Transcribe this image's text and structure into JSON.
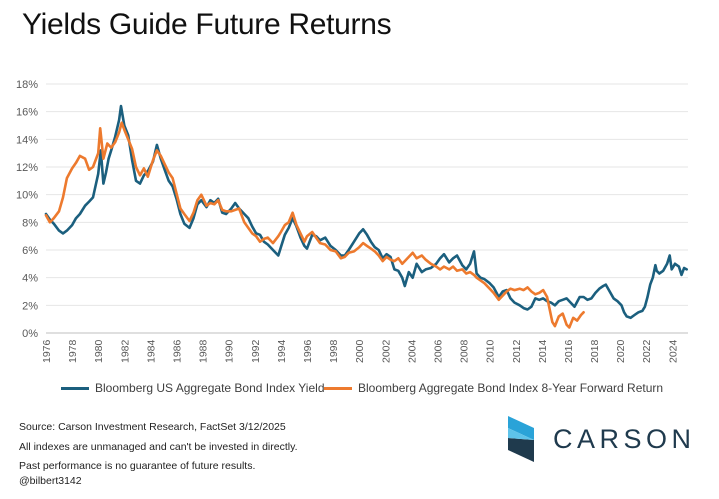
{
  "title": "Yields Guide Future Returns",
  "colors": {
    "yield": "#1b5f7e",
    "forward": "#ed7a2e",
    "axis_text": "#595959",
    "grid": "#e6e6e6",
    "logo_dark": "#1f3a4d",
    "logo_light": "#2aa3d8"
  },
  "source_notes": [
    "Source: Carson Investment Research, FactSet 3/12/2025",
    "All indexes are unmanaged and can't be invested in directly.",
    "Past performance is no guarantee of future results."
  ],
  "handle": "@bilbert3142",
  "logo": {
    "name": "CARSON",
    "icon": "carson-chevron-logo-icon"
  },
  "chart_data": {
    "type": "line",
    "title": "Yields Guide Future Returns",
    "xlabel": "",
    "ylabel": "",
    "xlim": [
      1976,
      2025.2
    ],
    "ylim": [
      0,
      18
    ],
    "x_ticks": [
      "1976",
      "1978",
      "1980",
      "1982",
      "1984",
      "1986",
      "1988",
      "1990",
      "1992",
      "1994",
      "1996",
      "1998",
      "2000",
      "2002",
      "2004",
      "2006",
      "2008",
      "2010",
      "2012",
      "2014",
      "2016",
      "2018",
      "2020",
      "2022",
      "2024"
    ],
    "y_ticks": [
      "0%",
      "2%",
      "4%",
      "6%",
      "8%",
      "10%",
      "12%",
      "14%",
      "16%",
      "18%"
    ],
    "grid": "horizontal",
    "legend_position": "bottom",
    "series": [
      {
        "name": "Bloomberg US Aggregate Bond Index Yield",
        "color": "#1b5f7e",
        "points": [
          [
            1976.0,
            8.6
          ],
          [
            1976.3,
            8.2
          ],
          [
            1976.6,
            7.9
          ],
          [
            1977.0,
            7.4
          ],
          [
            1977.3,
            7.2
          ],
          [
            1977.6,
            7.4
          ],
          [
            1978.0,
            7.8
          ],
          [
            1978.3,
            8.3
          ],
          [
            1978.6,
            8.6
          ],
          [
            1979.0,
            9.2
          ],
          [
            1979.3,
            9.5
          ],
          [
            1979.6,
            9.8
          ],
          [
            1980.0,
            11.5
          ],
          [
            1980.2,
            13.2
          ],
          [
            1980.4,
            10.8
          ],
          [
            1980.6,
            11.6
          ],
          [
            1980.8,
            12.6
          ],
          [
            1981.0,
            13.2
          ],
          [
            1981.3,
            14.2
          ],
          [
            1981.6,
            15.4
          ],
          [
            1981.75,
            16.4
          ],
          [
            1982.0,
            15.0
          ],
          [
            1982.3,
            14.3
          ],
          [
            1982.6,
            12.5
          ],
          [
            1982.9,
            11.0
          ],
          [
            1983.2,
            10.8
          ],
          [
            1983.5,
            11.4
          ],
          [
            1983.8,
            11.7
          ],
          [
            1984.2,
            12.4
          ],
          [
            1984.5,
            13.6
          ],
          [
            1984.8,
            12.6
          ],
          [
            1985.1,
            11.8
          ],
          [
            1985.4,
            11.0
          ],
          [
            1985.7,
            10.6
          ],
          [
            1986.0,
            9.7
          ],
          [
            1986.3,
            8.6
          ],
          [
            1986.6,
            7.9
          ],
          [
            1987.0,
            7.6
          ],
          [
            1987.3,
            8.3
          ],
          [
            1987.6,
            9.3
          ],
          [
            1987.9,
            9.6
          ],
          [
            1988.3,
            9.1
          ],
          [
            1988.6,
            9.6
          ],
          [
            1988.9,
            9.4
          ],
          [
            1989.2,
            9.7
          ],
          [
            1989.5,
            8.7
          ],
          [
            1989.8,
            8.6
          ],
          [
            1990.2,
            9.0
          ],
          [
            1990.5,
            9.4
          ],
          [
            1990.8,
            9.0
          ],
          [
            1991.2,
            8.6
          ],
          [
            1991.5,
            8.3
          ],
          [
            1991.8,
            7.7
          ],
          [
            1992.1,
            7.2
          ],
          [
            1992.4,
            7.1
          ],
          [
            1992.7,
            6.6
          ],
          [
            1993.0,
            6.4
          ],
          [
            1993.4,
            6.0
          ],
          [
            1993.8,
            5.6
          ],
          [
            1994.0,
            6.2
          ],
          [
            1994.3,
            7.1
          ],
          [
            1994.6,
            7.6
          ],
          [
            1994.9,
            8.3
          ],
          [
            1995.2,
            7.7
          ],
          [
            1995.5,
            6.9
          ],
          [
            1995.8,
            6.3
          ],
          [
            1996.0,
            6.1
          ],
          [
            1996.4,
            7.1
          ],
          [
            1996.7,
            7.0
          ],
          [
            1997.0,
            6.7
          ],
          [
            1997.4,
            6.9
          ],
          [
            1997.8,
            6.3
          ],
          [
            1998.2,
            6.0
          ],
          [
            1998.6,
            5.6
          ],
          [
            1998.9,
            5.6
          ],
          [
            1999.2,
            6.0
          ],
          [
            1999.6,
            6.6
          ],
          [
            2000.0,
            7.2
          ],
          [
            2000.3,
            7.5
          ],
          [
            2000.6,
            7.1
          ],
          [
            2000.9,
            6.6
          ],
          [
            2001.2,
            6.2
          ],
          [
            2001.5,
            6.0
          ],
          [
            2001.8,
            5.4
          ],
          [
            2002.1,
            5.7
          ],
          [
            2002.4,
            5.5
          ],
          [
            2002.7,
            4.6
          ],
          [
            2003.0,
            4.5
          ],
          [
            2003.3,
            4.0
          ],
          [
            2003.5,
            3.4
          ],
          [
            2003.8,
            4.4
          ],
          [
            2004.1,
            4.0
          ],
          [
            2004.4,
            5.0
          ],
          [
            2004.8,
            4.4
          ],
          [
            2005.1,
            4.6
          ],
          [
            2005.5,
            4.7
          ],
          [
            2005.9,
            5.0
          ],
          [
            2006.2,
            5.4
          ],
          [
            2006.5,
            5.7
          ],
          [
            2006.9,
            5.1
          ],
          [
            2007.2,
            5.4
          ],
          [
            2007.5,
            5.6
          ],
          [
            2007.9,
            4.9
          ],
          [
            2008.2,
            4.6
          ],
          [
            2008.5,
            5.0
          ],
          [
            2008.8,
            5.9
          ],
          [
            2009.0,
            4.3
          ],
          [
            2009.3,
            4.0
          ],
          [
            2009.6,
            3.9
          ],
          [
            2010.0,
            3.6
          ],
          [
            2010.3,
            3.3
          ],
          [
            2010.7,
            2.6
          ],
          [
            2011.0,
            3.0
          ],
          [
            2011.3,
            3.1
          ],
          [
            2011.6,
            2.5
          ],
          [
            2011.9,
            2.2
          ],
          [
            2012.3,
            2.0
          ],
          [
            2012.6,
            1.8
          ],
          [
            2012.9,
            1.7
          ],
          [
            2013.2,
            1.9
          ],
          [
            2013.5,
            2.5
          ],
          [
            2013.8,
            2.4
          ],
          [
            2014.1,
            2.5
          ],
          [
            2014.4,
            2.3
          ],
          [
            2014.7,
            2.2
          ],
          [
            2015.0,
            2.0
          ],
          [
            2015.3,
            2.3
          ],
          [
            2015.6,
            2.4
          ],
          [
            2015.9,
            2.5
          ],
          [
            2016.2,
            2.2
          ],
          [
            2016.5,
            1.9
          ],
          [
            2016.9,
            2.6
          ],
          [
            2017.2,
            2.6
          ],
          [
            2017.5,
            2.4
          ],
          [
            2017.8,
            2.5
          ],
          [
            2018.1,
            2.9
          ],
          [
            2018.4,
            3.2
          ],
          [
            2018.7,
            3.4
          ],
          [
            2018.9,
            3.5
          ],
          [
            2019.2,
            3.0
          ],
          [
            2019.5,
            2.5
          ],
          [
            2019.8,
            2.3
          ],
          [
            2020.1,
            2.0
          ],
          [
            2020.3,
            1.5
          ],
          [
            2020.5,
            1.2
          ],
          [
            2020.8,
            1.1
          ],
          [
            2021.1,
            1.3
          ],
          [
            2021.4,
            1.5
          ],
          [
            2021.7,
            1.6
          ],
          [
            2021.9,
            1.9
          ],
          [
            2022.1,
            2.6
          ],
          [
            2022.3,
            3.5
          ],
          [
            2022.5,
            4.0
          ],
          [
            2022.7,
            4.9
          ],
          [
            2022.8,
            4.5
          ],
          [
            2023.0,
            4.3
          ],
          [
            2023.3,
            4.5
          ],
          [
            2023.6,
            5.0
          ],
          [
            2023.8,
            5.6
          ],
          [
            2023.95,
            4.6
          ],
          [
            2024.2,
            5.0
          ],
          [
            2024.5,
            4.8
          ],
          [
            2024.7,
            4.2
          ],
          [
            2024.9,
            4.7
          ],
          [
            2025.1,
            4.6
          ]
        ]
      },
      {
        "name": "Bloomberg Aggregate Bond Index 8-Year Forward Return",
        "color": "#ed7a2e",
        "points": [
          [
            1976.0,
            8.5
          ],
          [
            1976.3,
            8.0
          ],
          [
            1976.6,
            8.3
          ],
          [
            1977.0,
            8.8
          ],
          [
            1977.3,
            9.8
          ],
          [
            1977.6,
            11.2
          ],
          [
            1978.0,
            11.9
          ],
          [
            1978.3,
            12.3
          ],
          [
            1978.6,
            12.8
          ],
          [
            1979.0,
            12.6
          ],
          [
            1979.3,
            11.8
          ],
          [
            1979.6,
            12.0
          ],
          [
            1980.0,
            13.0
          ],
          [
            1980.15,
            14.8
          ],
          [
            1980.4,
            12.6
          ],
          [
            1980.7,
            13.7
          ],
          [
            1981.0,
            13.4
          ],
          [
            1981.3,
            13.8
          ],
          [
            1981.6,
            14.5
          ],
          [
            1981.8,
            15.2
          ],
          [
            1982.0,
            14.7
          ],
          [
            1982.3,
            14.0
          ],
          [
            1982.6,
            13.3
          ],
          [
            1982.9,
            12.0
          ],
          [
            1983.2,
            11.4
          ],
          [
            1983.5,
            11.9
          ],
          [
            1983.8,
            11.3
          ],
          [
            1984.2,
            12.5
          ],
          [
            1984.5,
            13.2
          ],
          [
            1984.8,
            12.8
          ],
          [
            1985.1,
            12.2
          ],
          [
            1985.4,
            11.6
          ],
          [
            1985.7,
            11.2
          ],
          [
            1986.0,
            10.1
          ],
          [
            1986.3,
            9.0
          ],
          [
            1986.6,
            8.6
          ],
          [
            1987.0,
            8.1
          ],
          [
            1987.3,
            8.7
          ],
          [
            1987.6,
            9.6
          ],
          [
            1987.9,
            10.0
          ],
          [
            1988.3,
            9.2
          ],
          [
            1988.6,
            9.4
          ],
          [
            1988.9,
            9.3
          ],
          [
            1989.2,
            9.6
          ],
          [
            1989.5,
            8.9
          ],
          [
            1989.8,
            8.8
          ],
          [
            1990.2,
            8.8
          ],
          [
            1990.5,
            8.9
          ],
          [
            1990.8,
            9.0
          ],
          [
            1991.2,
            8.0
          ],
          [
            1991.5,
            7.6
          ],
          [
            1991.8,
            7.2
          ],
          [
            1992.1,
            7.0
          ],
          [
            1992.4,
            6.6
          ],
          [
            1992.7,
            6.8
          ],
          [
            1993.0,
            6.9
          ],
          [
            1993.4,
            6.5
          ],
          [
            1993.8,
            7.0
          ],
          [
            1994.0,
            7.3
          ],
          [
            1994.3,
            7.8
          ],
          [
            1994.6,
            8.0
          ],
          [
            1994.9,
            8.7
          ],
          [
            1995.2,
            7.8
          ],
          [
            1995.5,
            7.2
          ],
          [
            1995.8,
            6.6
          ],
          [
            1996.0,
            7.0
          ],
          [
            1996.4,
            7.3
          ],
          [
            1996.7,
            6.9
          ],
          [
            1997.0,
            6.5
          ],
          [
            1997.4,
            6.4
          ],
          [
            1997.8,
            6.0
          ],
          [
            1998.2,
            5.9
          ],
          [
            1998.6,
            5.4
          ],
          [
            1998.9,
            5.5
          ],
          [
            1999.2,
            5.8
          ],
          [
            1999.6,
            5.9
          ],
          [
            2000.0,
            6.2
          ],
          [
            2000.3,
            6.5
          ],
          [
            2000.6,
            6.3
          ],
          [
            2000.9,
            6.1
          ],
          [
            2001.2,
            5.9
          ],
          [
            2001.5,
            5.6
          ],
          [
            2001.8,
            5.2
          ],
          [
            2002.1,
            5.5
          ],
          [
            2002.4,
            5.3
          ],
          [
            2002.7,
            5.2
          ],
          [
            2003.0,
            5.4
          ],
          [
            2003.3,
            5.0
          ],
          [
            2003.5,
            5.2
          ],
          [
            2003.8,
            5.5
          ],
          [
            2004.1,
            5.8
          ],
          [
            2004.4,
            5.4
          ],
          [
            2004.8,
            5.6
          ],
          [
            2005.1,
            5.3
          ],
          [
            2005.5,
            5.0
          ],
          [
            2005.9,
            4.8
          ],
          [
            2006.2,
            4.6
          ],
          [
            2006.5,
            4.8
          ],
          [
            2006.9,
            4.6
          ],
          [
            2007.2,
            4.8
          ],
          [
            2007.5,
            4.5
          ],
          [
            2007.9,
            4.6
          ],
          [
            2008.2,
            4.3
          ],
          [
            2008.5,
            4.4
          ],
          [
            2008.8,
            4.2
          ],
          [
            2009.0,
            4.0
          ],
          [
            2009.3,
            3.8
          ],
          [
            2009.6,
            3.6
          ],
          [
            2010.0,
            3.2
          ],
          [
            2010.3,
            2.9
          ],
          [
            2010.7,
            2.4
          ],
          [
            2011.0,
            2.7
          ],
          [
            2011.3,
            3.0
          ],
          [
            2011.6,
            3.2
          ],
          [
            2011.9,
            3.1
          ],
          [
            2012.3,
            3.2
          ],
          [
            2012.6,
            3.1
          ],
          [
            2012.9,
            3.3
          ],
          [
            2013.2,
            3.0
          ],
          [
            2013.5,
            2.8
          ],
          [
            2013.8,
            2.9
          ],
          [
            2014.1,
            3.1
          ],
          [
            2014.4,
            2.6
          ],
          [
            2014.6,
            1.7
          ],
          [
            2014.8,
            0.8
          ],
          [
            2015.0,
            0.5
          ],
          [
            2015.3,
            1.2
          ],
          [
            2015.6,
            1.4
          ],
          [
            2015.9,
            0.6
          ],
          [
            2016.1,
            0.4
          ],
          [
            2016.4,
            1.1
          ],
          [
            2016.7,
            0.9
          ],
          [
            2017.0,
            1.3
          ],
          [
            2017.2,
            1.5
          ]
        ]
      }
    ]
  }
}
